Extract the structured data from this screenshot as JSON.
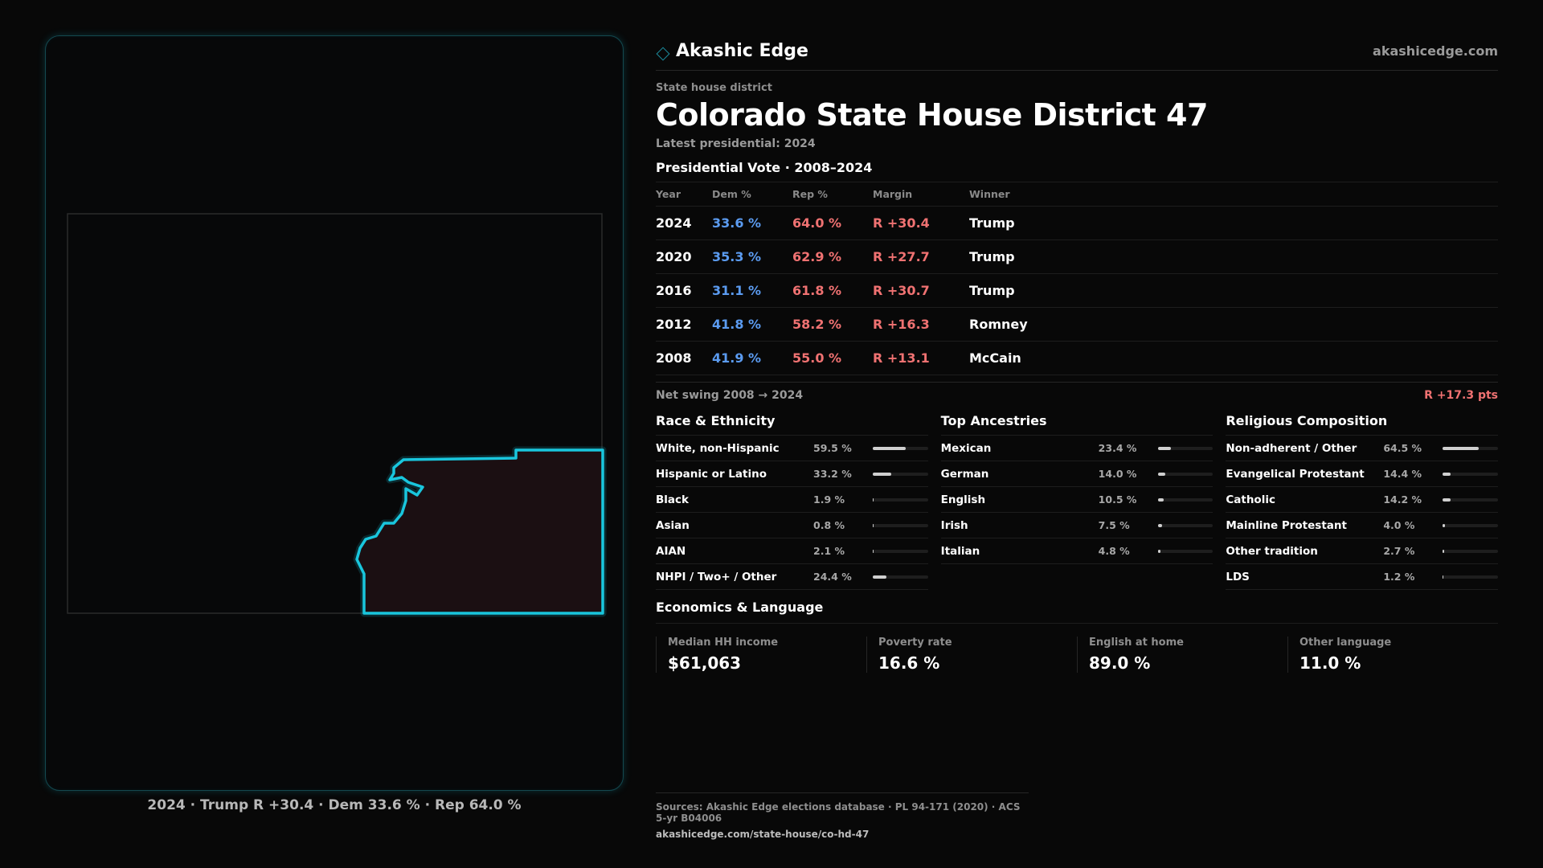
{
  "brand": {
    "name": "Akashic Edge",
    "url": "akashicedge.com",
    "icon": "diamond-icon"
  },
  "district": {
    "type_label": "State house district",
    "title": "Colorado State House District 47",
    "latest": "Latest presidential: 2024"
  },
  "map": {
    "caption": "2024 · Trump R +30.4 · Dem 33.6 % · Rep 64.0 %",
    "accent": "#19c6dd",
    "fill": "#1b0f12"
  },
  "presidential": {
    "title": "Presidential Vote · 2008–2024",
    "headers": {
      "year": "Year",
      "dem": "Dem %",
      "rep": "Rep %",
      "margin": "Margin",
      "winner": "Winner"
    },
    "rows": [
      {
        "year": "2024",
        "dem": "33.6 %",
        "rep": "64.0 %",
        "margin": "R +30.4",
        "winner": "Trump"
      },
      {
        "year": "2020",
        "dem": "35.3 %",
        "rep": "62.9 %",
        "margin": "R +27.7",
        "winner": "Trump"
      },
      {
        "year": "2016",
        "dem": "31.1 %",
        "rep": "61.8 %",
        "margin": "R +30.7",
        "winner": "Trump"
      },
      {
        "year": "2012",
        "dem": "41.8 %",
        "rep": "58.2 %",
        "margin": "R +16.3",
        "winner": "Romney"
      },
      {
        "year": "2008",
        "dem": "41.9 %",
        "rep": "55.0 %",
        "margin": "R +13.1",
        "winner": "McCain"
      }
    ],
    "swing_label": "Net swing 2008 → 2024",
    "swing_value": "R +17.3 pts",
    "dem_color": "#5b9bf0",
    "rep_color": "#f07272"
  },
  "race": {
    "title": "Race & Ethnicity",
    "rows": [
      {
        "label": "White, non-Hispanic",
        "pct": "59.5 %",
        "value": 59.5
      },
      {
        "label": "Hispanic or Latino",
        "pct": "33.2 %",
        "value": 33.2
      },
      {
        "label": "Black",
        "pct": "1.9 %",
        "value": 1.9
      },
      {
        "label": "Asian",
        "pct": "0.8 %",
        "value": 0.8
      },
      {
        "label": "AIAN",
        "pct": "2.1 %",
        "value": 2.1
      },
      {
        "label": "NHPI / Two+ / Other",
        "pct": "24.4 %",
        "value": 24.4
      }
    ]
  },
  "ancestry": {
    "title": "Top Ancestries",
    "rows": [
      {
        "label": "Mexican",
        "pct": "23.4 %",
        "value": 23.4
      },
      {
        "label": "German",
        "pct": "14.0 %",
        "value": 14.0
      },
      {
        "label": "English",
        "pct": "10.5 %",
        "value": 10.5
      },
      {
        "label": "Irish",
        "pct": "7.5 %",
        "value": 7.5
      },
      {
        "label": "Italian",
        "pct": "4.8 %",
        "value": 4.8
      }
    ]
  },
  "religion": {
    "title": "Religious Composition",
    "rows": [
      {
        "label": "Non-adherent / Other",
        "pct": "64.5 %",
        "value": 64.5
      },
      {
        "label": "Evangelical Protestant",
        "pct": "14.4 %",
        "value": 14.4
      },
      {
        "label": "Catholic",
        "pct": "14.2 %",
        "value": 14.2
      },
      {
        "label": "Mainline Protestant",
        "pct": "4.0 %",
        "value": 4.0
      },
      {
        "label": "Other tradition",
        "pct": "2.7 %",
        "value": 2.7
      },
      {
        "label": "LDS",
        "pct": "1.2 %",
        "value": 1.2
      }
    ]
  },
  "economics": {
    "title": "Economics & Language",
    "cells": [
      {
        "label": "Median HH income",
        "value": "$61,063"
      },
      {
        "label": "Poverty rate",
        "value": "16.6 %"
      },
      {
        "label": "English at home",
        "value": "89.0 %"
      },
      {
        "label": "Other language",
        "value": "11.0 %"
      }
    ]
  },
  "footer": {
    "sources": "Sources: Akashic Edge elections database · PL 94-171 (2020) · ACS 5-yr B04006",
    "url": "akashicedge.com/state-house/co-hd-47"
  }
}
